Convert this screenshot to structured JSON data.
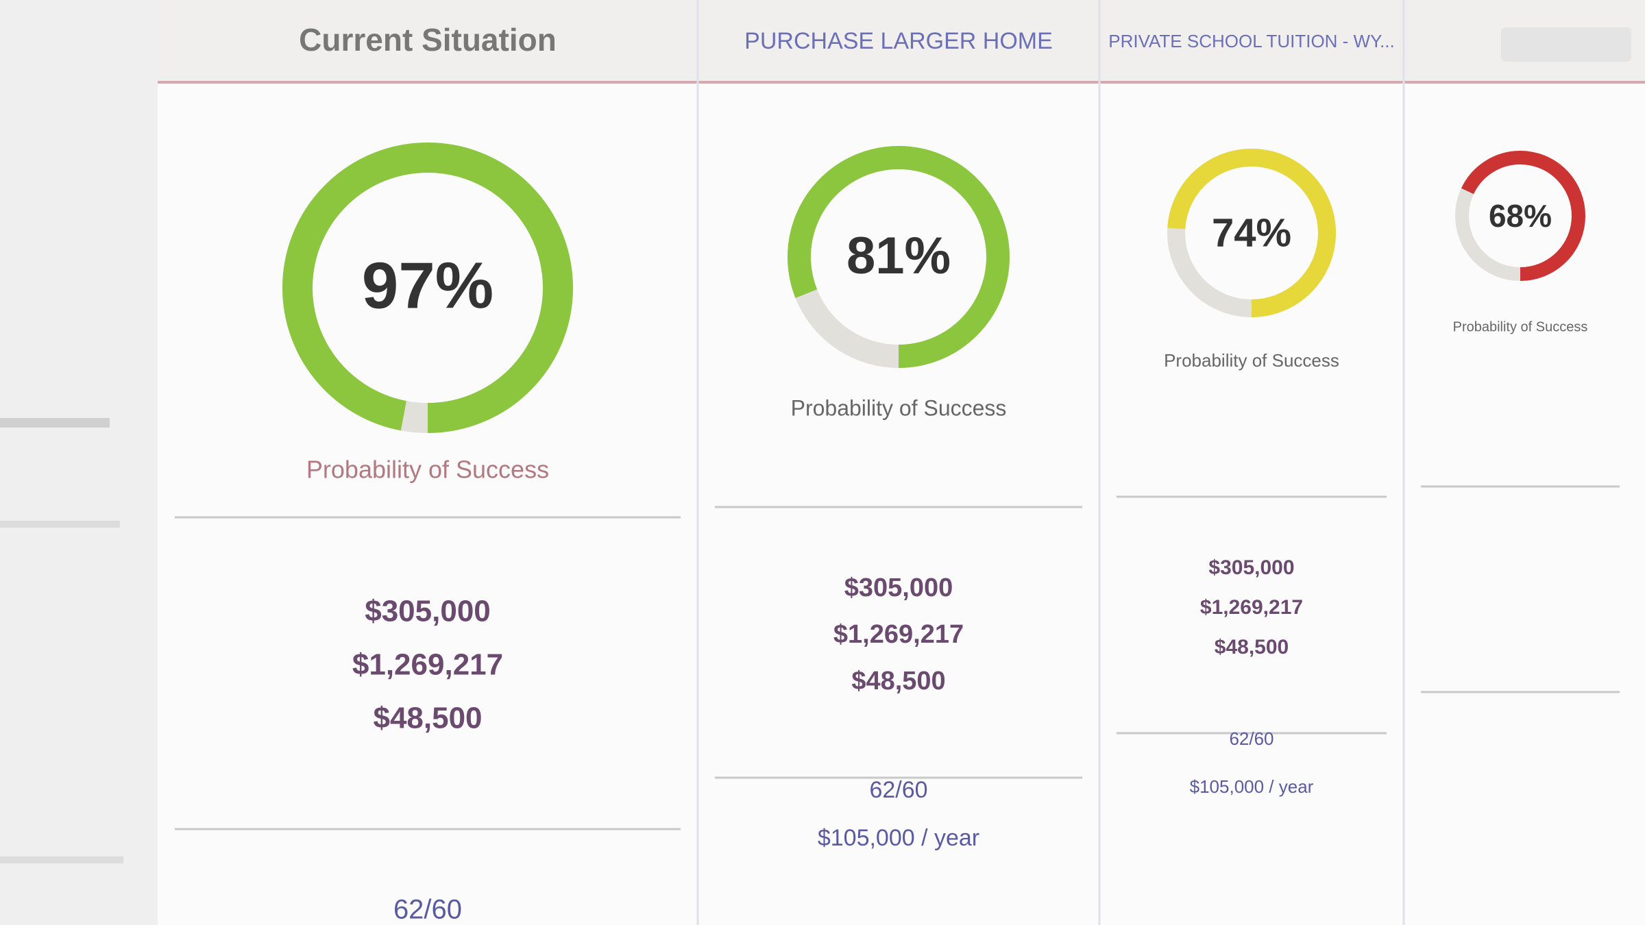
{
  "columns": [
    {
      "title": "Current Situation",
      "probability": 97,
      "probability_label": "97%",
      "color": "#8cc63f",
      "caption": "Probability of Success",
      "values": [
        "$305,000",
        "$1,269,217",
        "$48,500"
      ],
      "retirement": [
        "62/60"
      ]
    },
    {
      "title": "PURCHASE LARGER HOME",
      "probability": 81,
      "probability_label": "81%",
      "color": "#8cc63f",
      "caption": "Probability of Success",
      "values": [
        "$305,000",
        "$1,269,217",
        "$48,500"
      ],
      "retirement": [
        "62/60",
        "$105,000 / year"
      ]
    },
    {
      "title": "PRIVATE SCHOOL TUITION - WY...",
      "probability": 74,
      "probability_label": "74%",
      "color": "#e6d83a",
      "caption": "Probability of Success",
      "values": [
        "$305,000",
        "$1,269,217",
        "$48,500"
      ],
      "retirement": [
        "62/60",
        "$105,000 / year"
      ]
    },
    {
      "probability": 68,
      "probability_label": "68%",
      "color": "#cc3333",
      "caption": "Probability of Success"
    }
  ]
}
